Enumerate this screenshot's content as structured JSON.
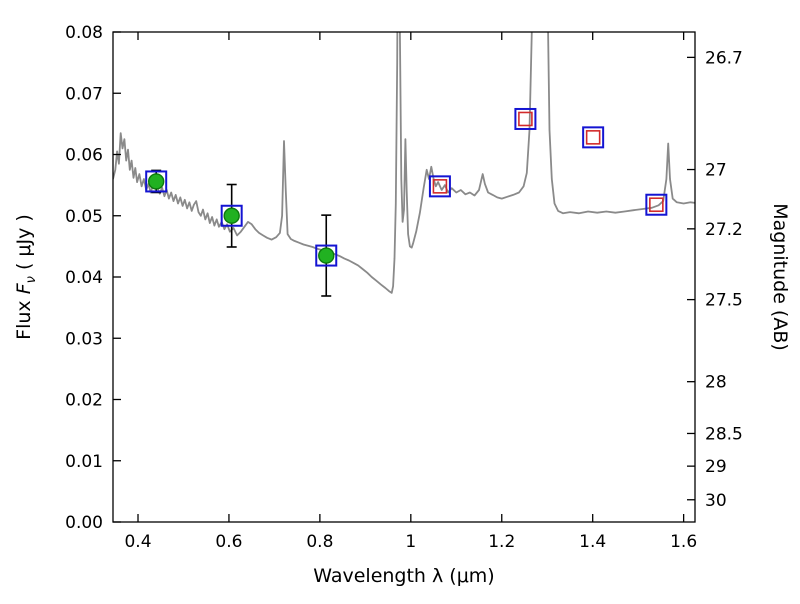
{
  "figure": {
    "background": "#ffffff",
    "axes_color": "#000000"
  },
  "chart_data": {
    "type": "line",
    "title": "",
    "xlabel": "Wavelength  λ (μm)",
    "ylabel": {
      "prefix": "Flux  ",
      "symbol": "F",
      "subscript": "ν",
      "suffix": "  ( μJy )"
    },
    "ylabel_right": "Magnitude (AB)",
    "xlim": [
      0.345,
      1.625
    ],
    "ylim": [
      0.0,
      0.08
    ],
    "grid": false,
    "legend": null,
    "x_ticks": {
      "values": [
        0.4,
        0.6,
        0.8,
        1.0,
        1.2,
        1.4,
        1.6
      ],
      "labels": [
        "0.4",
        "0.6",
        "0.8",
        "1",
        "1.2",
        "1.4",
        "1.6"
      ]
    },
    "y_ticks_left": {
      "values": [
        0.0,
        0.01,
        0.02,
        0.03,
        0.04,
        0.05,
        0.06,
        0.07,
        0.08
      ],
      "labels": [
        "0.00",
        "0.01",
        "0.02",
        "0.03",
        "0.04",
        "0.05",
        "0.06",
        "0.07",
        "0.08"
      ]
    },
    "y_ticks_right": {
      "ab_zeropoint_ujy": 23.9,
      "values": [
        26.7,
        27,
        27.2,
        27.5,
        28,
        28.5,
        29,
        30
      ],
      "labels": [
        "26.7",
        "27",
        "27.2",
        "27.5",
        "28",
        "28.5",
        "29",
        "30"
      ]
    },
    "spectrum": {
      "name": "model-spectrum",
      "color": "#8a8a8a",
      "linewidth": 1.8,
      "points": [
        [
          0.345,
          0.056
        ],
        [
          0.35,
          0.0575
        ],
        [
          0.354,
          0.0605
        ],
        [
          0.358,
          0.0585
        ],
        [
          0.362,
          0.0635
        ],
        [
          0.366,
          0.061
        ],
        [
          0.37,
          0.0625
        ],
        [
          0.374,
          0.059
        ],
        [
          0.378,
          0.0608
        ],
        [
          0.382,
          0.0575
        ],
        [
          0.386,
          0.059
        ],
        [
          0.39,
          0.0562
        ],
        [
          0.394,
          0.0578
        ],
        [
          0.398,
          0.0555
        ],
        [
          0.403,
          0.0568
        ],
        [
          0.408,
          0.0548
        ],
        [
          0.413,
          0.056
        ],
        [
          0.418,
          0.0542
        ],
        [
          0.423,
          0.0552
        ],
        [
          0.428,
          0.0538
        ],
        [
          0.433,
          0.055
        ],
        [
          0.438,
          0.0558
        ],
        [
          0.443,
          0.0545
        ],
        [
          0.448,
          0.0536
        ],
        [
          0.453,
          0.0546
        ],
        [
          0.458,
          0.0532
        ],
        [
          0.463,
          0.0542
        ],
        [
          0.468,
          0.0528
        ],
        [
          0.473,
          0.0538
        ],
        [
          0.478,
          0.0524
        ],
        [
          0.483,
          0.0534
        ],
        [
          0.488,
          0.052
        ],
        [
          0.493,
          0.053
        ],
        [
          0.498,
          0.0516
        ],
        [
          0.503,
          0.0526
        ],
        [
          0.508,
          0.0512
        ],
        [
          0.513,
          0.0522
        ],
        [
          0.518,
          0.0508
        ],
        [
          0.523,
          0.0518
        ],
        [
          0.528,
          0.0524
        ],
        [
          0.533,
          0.0506
        ],
        [
          0.538,
          0.05
        ],
        [
          0.543,
          0.051
        ],
        [
          0.548,
          0.0494
        ],
        [
          0.553,
          0.0504
        ],
        [
          0.558,
          0.0488
        ],
        [
          0.563,
          0.0498
        ],
        [
          0.568,
          0.0484
        ],
        [
          0.573,
          0.0494
        ],
        [
          0.578,
          0.0482
        ],
        [
          0.584,
          0.049
        ],
        [
          0.59,
          0.0478
        ],
        [
          0.596,
          0.0486
        ],
        [
          0.602,
          0.0474
        ],
        [
          0.61,
          0.048
        ],
        [
          0.618,
          0.0468
        ],
        [
          0.626,
          0.0474
        ],
        [
          0.634,
          0.0482
        ],
        [
          0.642,
          0.049
        ],
        [
          0.65,
          0.0486
        ],
        [
          0.658,
          0.0478
        ],
        [
          0.666,
          0.0472
        ],
        [
          0.675,
          0.0468
        ],
        [
          0.684,
          0.0464
        ],
        [
          0.694,
          0.0461
        ],
        [
          0.704,
          0.0465
        ],
        [
          0.712,
          0.0472
        ],
        [
          0.717,
          0.05
        ],
        [
          0.721,
          0.0622
        ],
        [
          0.725,
          0.054
        ],
        [
          0.729,
          0.047
        ],
        [
          0.736,
          0.0462
        ],
        [
          0.744,
          0.0459
        ],
        [
          0.754,
          0.0456
        ],
        [
          0.764,
          0.0453
        ],
        [
          0.774,
          0.0451
        ],
        [
          0.784,
          0.0449
        ],
        [
          0.794,
          0.0446
        ],
        [
          0.804,
          0.0444
        ],
        [
          0.814,
          0.0441
        ],
        [
          0.824,
          0.0439
        ],
        [
          0.834,
          0.0437
        ],
        [
          0.844,
          0.0434
        ],
        [
          0.854,
          0.043
        ],
        [
          0.864,
          0.0427
        ],
        [
          0.874,
          0.0423
        ],
        [
          0.884,
          0.0419
        ],
        [
          0.894,
          0.0413
        ],
        [
          0.904,
          0.0407
        ],
        [
          0.914,
          0.04
        ],
        [
          0.924,
          0.0394
        ],
        [
          0.934,
          0.0388
        ],
        [
          0.944,
          0.0382
        ],
        [
          0.952,
          0.0377
        ],
        [
          0.958,
          0.0374
        ],
        [
          0.961,
          0.0385
        ],
        [
          0.964,
          0.043
        ],
        [
          0.967,
          0.052
        ],
        [
          0.97,
          0.075
        ],
        [
          0.973,
          0.12
        ],
        [
          0.976,
          0.08
        ],
        [
          0.979,
          0.056
        ],
        [
          0.982,
          0.049
        ],
        [
          0.985,
          0.051
        ],
        [
          0.988,
          0.0625
        ],
        [
          0.991,
          0.054
        ],
        [
          0.994,
          0.047
        ],
        [
          0.998,
          0.045
        ],
        [
          1.002,
          0.0448
        ],
        [
          1.005,
          0.0455
        ],
        [
          1.012,
          0.0475
        ],
        [
          1.02,
          0.0505
        ],
        [
          1.028,
          0.0545
        ],
        [
          1.035,
          0.0575
        ],
        [
          1.04,
          0.056
        ],
        [
          1.045,
          0.058
        ],
        [
          1.05,
          0.056
        ],
        [
          1.055,
          0.0548
        ],
        [
          1.06,
          0.0555
        ],
        [
          1.068,
          0.0542
        ],
        [
          1.075,
          0.055
        ],
        [
          1.082,
          0.0538
        ],
        [
          1.09,
          0.0545
        ],
        [
          1.1,
          0.0538
        ],
        [
          1.11,
          0.0542
        ],
        [
          1.12,
          0.0535
        ],
        [
          1.13,
          0.0538
        ],
        [
          1.14,
          0.0533
        ],
        [
          1.15,
          0.0542
        ],
        [
          1.158,
          0.0568
        ],
        [
          1.163,
          0.0552
        ],
        [
          1.17,
          0.0538
        ],
        [
          1.18,
          0.0534
        ],
        [
          1.19,
          0.053
        ],
        [
          1.2,
          0.0528
        ],
        [
          1.212,
          0.0531
        ],
        [
          1.225,
          0.0534
        ],
        [
          1.238,
          0.0538
        ],
        [
          1.248,
          0.0548
        ],
        [
          1.255,
          0.057
        ],
        [
          1.261,
          0.064
        ],
        [
          1.266,
          0.08
        ],
        [
          1.27,
          0.14
        ],
        [
          1.292,
          0.15
        ],
        [
          1.3,
          0.09
        ],
        [
          1.305,
          0.064
        ],
        [
          1.31,
          0.056
        ],
        [
          1.316,
          0.052
        ],
        [
          1.324,
          0.0508
        ],
        [
          1.335,
          0.0504
        ],
        [
          1.35,
          0.0506
        ],
        [
          1.37,
          0.0504
        ],
        [
          1.39,
          0.0507
        ],
        [
          1.41,
          0.0505
        ],
        [
          1.43,
          0.0507
        ],
        [
          1.45,
          0.0505
        ],
        [
          1.47,
          0.0507
        ],
        [
          1.49,
          0.0509
        ],
        [
          1.51,
          0.0511
        ],
        [
          1.53,
          0.0513
        ],
        [
          1.545,
          0.0517
        ],
        [
          1.555,
          0.0524
        ],
        [
          1.562,
          0.056
        ],
        [
          1.566,
          0.0618
        ],
        [
          1.57,
          0.056
        ],
        [
          1.576,
          0.0528
        ],
        [
          1.585,
          0.0522
        ],
        [
          1.6,
          0.052
        ],
        [
          1.615,
          0.0522
        ],
        [
          1.625,
          0.0521
        ]
      ]
    },
    "photometry": [
      {
        "name": "observed-photometry-circles",
        "marker": "circle",
        "fill_color": "#21b121",
        "edge_color": "#0c7a0c",
        "error_color": "#000000",
        "size": 15,
        "points": [
          [
            0.44,
            0.0556,
            0.0018
          ],
          [
            0.606,
            0.05,
            0.0051
          ],
          [
            0.814,
            0.0435,
            0.0066
          ]
        ]
      },
      {
        "name": "observed-photometry-ir-squares",
        "marker": "square",
        "fill_color": "none",
        "edge_color": "#d22b2b",
        "size": 13,
        "points": [
          [
            1.064,
            0.0548
          ],
          [
            1.252,
            0.0658
          ],
          [
            1.401,
            0.0628
          ],
          [
            1.54,
            0.0518
          ]
        ]
      },
      {
        "name": "model-photometry-squares",
        "marker": "square",
        "fill_color": "none",
        "edge_color": "#1414d2",
        "size": 20,
        "points": [
          [
            0.44,
            0.0556
          ],
          [
            0.606,
            0.05
          ],
          [
            0.814,
            0.0435
          ],
          [
            1.064,
            0.0548
          ],
          [
            1.252,
            0.0658
          ],
          [
            1.401,
            0.0628
          ],
          [
            1.54,
            0.0518
          ]
        ]
      }
    ]
  }
}
